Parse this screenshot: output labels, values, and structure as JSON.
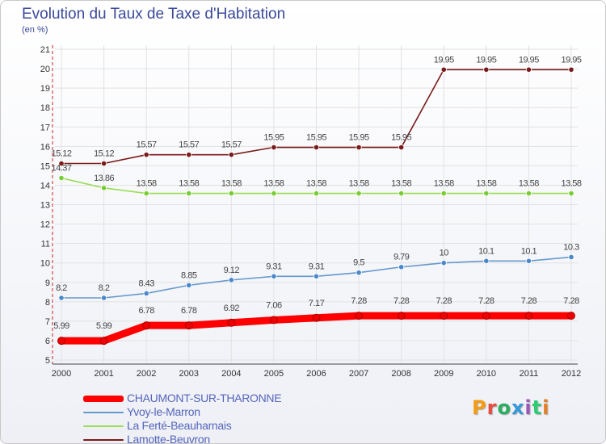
{
  "title": "Evolution du Taux de Taxe d'Habitation",
  "unit": "(en %)",
  "logo": {
    "text": "Proxiti",
    "colors": [
      "#f39c12",
      "#e74c3c",
      "#27ae60",
      "#3498db",
      "#9b59b6",
      "#2ecc71",
      "#e67e22"
    ]
  },
  "chart_data": {
    "type": "line",
    "x": [
      "2000",
      "2001",
      "2002",
      "2003",
      "2004",
      "2005",
      "2006",
      "2007",
      "2008",
      "2009",
      "2010",
      "2011",
      "2012"
    ],
    "ylim": [
      5,
      21
    ],
    "yticks": [
      "5",
      "6",
      "7",
      "8",
      "9",
      "10",
      "11",
      "12",
      "13",
      "14",
      "15",
      "16",
      "17",
      "18",
      "19",
      "20",
      "21"
    ],
    "grid": true,
    "legend_position": "bottom-left",
    "series": [
      {
        "name": "Lamotte-Beuvron",
        "color": "#7a1a1a",
        "marker": "#7a1a1a",
        "values": [
          15.12,
          15.12,
          15.57,
          15.57,
          15.57,
          15.95,
          15.95,
          15.95,
          15.95,
          19.95,
          19.95,
          19.95,
          19.95
        ],
        "labels": [
          "15.12",
          "15.12",
          "15.57",
          "15.57",
          "15.57",
          "15.95",
          "15.95",
          "15.95",
          "15.95",
          "19.95",
          "19.95",
          "19.95",
          "19.95"
        ]
      },
      {
        "name": "La Ferté-Beauharnais",
        "color": "#99dd55",
        "marker": "#77cc33",
        "values": [
          14.37,
          13.86,
          13.58,
          13.58,
          13.58,
          13.58,
          13.58,
          13.58,
          13.58,
          13.58,
          13.58,
          13.58,
          13.58
        ],
        "labels": [
          "14.37",
          "13.86",
          "13.58",
          "13.58",
          "13.58",
          "13.58",
          "13.58",
          "13.58",
          "13.58",
          "13.58",
          "13.58",
          "13.58",
          "13.58"
        ]
      },
      {
        "name": "Yvoy-le-Marron",
        "color": "#6699cc",
        "marker": "#4a88cc",
        "values": [
          8.2,
          8.2,
          8.43,
          8.85,
          9.12,
          9.31,
          9.31,
          9.5,
          9.79,
          10,
          10.1,
          10.1,
          10.3
        ],
        "labels": [
          "8.2",
          "8.2",
          "8.43",
          "8.85",
          "9.12",
          "9.31",
          "9.31",
          "9.5",
          "9.79",
          "10",
          "10.1",
          "10.1",
          "10.3"
        ]
      },
      {
        "name": "CHAUMONT-SUR-THARONNE",
        "color": "#ff0000",
        "marker": "#ee0000",
        "values": [
          5.99,
          5.99,
          6.78,
          6.78,
          6.92,
          7.06,
          7.17,
          7.28,
          7.28,
          7.28,
          7.28,
          7.28,
          7.28
        ],
        "labels": [
          "5.99",
          "5.99",
          "6.78",
          "6.78",
          "6.92",
          "7.06",
          "7.17",
          "7.28",
          "7.28",
          "7.28",
          "7.28",
          "7.28",
          "7.28"
        ]
      }
    ]
  },
  "legend": [
    {
      "label": "CHAUMONT-SUR-THARONNE",
      "color": "#ff0000"
    },
    {
      "label": "Yvoy-le-Marron",
      "color": "#6699cc"
    },
    {
      "label": "La Ferté-Beauharnais",
      "color": "#99dd55"
    },
    {
      "label": "Lamotte-Beuvron",
      "color": "#7a1a1a"
    }
  ]
}
